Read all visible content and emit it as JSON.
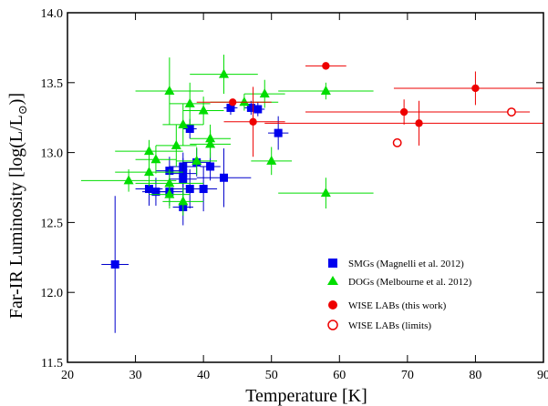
{
  "chart_data": {
    "type": "scatter",
    "xlabel": "Temperature [K]",
    "ylabel_main": "Far-IR Luminosity [log(L/L",
    "ylabel_sub": "⊙",
    "ylabel_end": ")]",
    "xlim": [
      20,
      90
    ],
    "ylim": [
      11.5,
      14.0
    ],
    "x_ticks": [
      20,
      30,
      40,
      50,
      60,
      70,
      80,
      90
    ],
    "y_ticks": [
      11.5,
      12.0,
      12.5,
      13.0,
      13.5,
      14.0
    ],
    "y_tick_labels": [
      "11.5",
      "12.0",
      "12.5",
      "13.0",
      "13.5",
      "14.0"
    ],
    "grid": false,
    "legend_position": "lower-right",
    "series": [
      {
        "name": "SMGs (Magnelli et al. 2012)",
        "color": "#0000ee",
        "marker": "square",
        "points": [
          {
            "x": 27.0,
            "y": 12.2,
            "xl": 25.0,
            "xh": 29.0,
            "yl": 11.71,
            "yh": 12.69
          },
          {
            "x": 32.0,
            "y": 12.74,
            "xl": 30.0,
            "xh": 34.0,
            "yl": 12.62,
            "yh": 12.86
          },
          {
            "x": 33.0,
            "y": 12.72,
            "xl": 31.0,
            "xh": 35.0,
            "yl": 12.62,
            "yh": 12.82
          },
          {
            "x": 35.0,
            "y": 12.87,
            "xl": 33.0,
            "xh": 37.0,
            "yl": 12.77,
            "yh": 12.97
          },
          {
            "x": 35.0,
            "y": 12.72,
            "xl": 33.0,
            "xh": 37.0,
            "yl": 12.62,
            "yh": 12.82
          },
          {
            "x": 37.0,
            "y": 12.9,
            "xl": 35.0,
            "xh": 39.0,
            "yl": 12.8,
            "yh": 13.0
          },
          {
            "x": 37.0,
            "y": 12.85,
            "xl": 35.0,
            "xh": 39.0,
            "yl": 12.74,
            "yh": 12.96
          },
          {
            "x": 37.0,
            "y": 12.81,
            "xl": 35.0,
            "xh": 39.0,
            "yl": 12.7,
            "yh": 12.92
          },
          {
            "x": 37.0,
            "y": 12.61,
            "xl": 35.5,
            "xh": 38.5,
            "yl": 12.48,
            "yh": 12.74
          },
          {
            "x": 38.0,
            "y": 13.17,
            "xl": 37.0,
            "xh": 39.0,
            "yl": 13.1,
            "yh": 13.24
          },
          {
            "x": 38.0,
            "y": 12.74,
            "xl": 35.0,
            "xh": 41.0,
            "yl": 12.6,
            "yh": 12.88
          },
          {
            "x": 39.0,
            "y": 12.93,
            "xl": 37.0,
            "xh": 41.0,
            "yl": 12.83,
            "yh": 13.03
          },
          {
            "x": 40.0,
            "y": 12.74,
            "xl": 38.0,
            "xh": 42.0,
            "yl": 12.58,
            "yh": 12.9
          },
          {
            "x": 41.0,
            "y": 12.9,
            "xl": 39.5,
            "xh": 42.5,
            "yl": 12.8,
            "yh": 13.0
          },
          {
            "x": 43.0,
            "y": 12.82,
            "xl": 39.0,
            "xh": 47.0,
            "yl": 12.61,
            "yh": 13.03
          },
          {
            "x": 44.0,
            "y": 13.32,
            "xl": 43.0,
            "xh": 45.0,
            "yl": 13.27,
            "yh": 13.37
          },
          {
            "x": 47.0,
            "y": 13.32,
            "xl": 46.0,
            "xh": 48.0,
            "yl": 13.27,
            "yh": 13.37
          },
          {
            "x": 48.0,
            "y": 13.31,
            "xl": 47.0,
            "xh": 49.0,
            "yl": 13.26,
            "yh": 13.36
          },
          {
            "x": 51.0,
            "y": 13.14,
            "xl": 49.5,
            "xh": 52.5,
            "yl": 13.02,
            "yh": 13.26
          }
        ]
      },
      {
        "name": "DOGs (Melbourne et al. 2012)",
        "color": "#00dd00",
        "marker": "triangle",
        "points": [
          {
            "x": 29.0,
            "y": 12.8,
            "xl": 22.0,
            "xh": 36.0,
            "yl": 12.72,
            "yh": 12.88
          },
          {
            "x": 32.0,
            "y": 13.01,
            "xl": 27.0,
            "xh": 37.0,
            "yl": 12.93,
            "yh": 13.09
          },
          {
            "x": 32.0,
            "y": 12.86,
            "xl": 27.0,
            "xh": 37.0,
            "yl": 12.76,
            "yh": 12.96
          },
          {
            "x": 33.0,
            "y": 12.95,
            "xl": 30.0,
            "xh": 36.0,
            "yl": 12.85,
            "yh": 13.05
          },
          {
            "x": 35.0,
            "y": 13.44,
            "xl": 30.0,
            "xh": 40.0,
            "yl": 13.2,
            "yh": 13.68
          },
          {
            "x": 35.0,
            "y": 12.78,
            "xl": 30.0,
            "xh": 40.0,
            "yl": 12.68,
            "yh": 12.88
          },
          {
            "x": 35.0,
            "y": 12.7,
            "xl": 32.0,
            "xh": 38.0,
            "yl": 12.6,
            "yh": 12.8
          },
          {
            "x": 36.0,
            "y": 13.05,
            "xl": 33.0,
            "xh": 39.0,
            "yl": 12.9,
            "yh": 13.2
          },
          {
            "x": 37.0,
            "y": 13.2,
            "xl": 34.0,
            "xh": 40.0,
            "yl": 13.05,
            "yh": 13.35
          },
          {
            "x": 37.0,
            "y": 12.65,
            "xl": 34.0,
            "xh": 40.0,
            "yl": 12.55,
            "yh": 12.75
          },
          {
            "x": 38.0,
            "y": 13.35,
            "xl": 35.0,
            "xh": 41.0,
            "yl": 13.2,
            "yh": 13.5
          },
          {
            "x": 39.0,
            "y": 12.94,
            "xl": 36.0,
            "xh": 42.0,
            "yl": 12.84,
            "yh": 13.04
          },
          {
            "x": 40.0,
            "y": 13.3,
            "xl": 37.0,
            "xh": 43.0,
            "yl": 13.2,
            "yh": 13.4
          },
          {
            "x": 41.0,
            "y": 13.1,
            "xl": 38.0,
            "xh": 44.0,
            "yl": 13.0,
            "yh": 13.2
          },
          {
            "x": 41.0,
            "y": 13.06,
            "xl": 38.0,
            "xh": 44.0,
            "yl": 12.96,
            "yh": 13.16
          },
          {
            "x": 43.0,
            "y": 13.56,
            "xl": 38.0,
            "xh": 48.0,
            "yl": 13.42,
            "yh": 13.7
          },
          {
            "x": 46.0,
            "y": 13.36,
            "xl": 41.0,
            "xh": 51.0,
            "yl": 13.3,
            "yh": 13.42
          },
          {
            "x": 49.0,
            "y": 13.42,
            "xl": 46.0,
            "xh": 52.0,
            "yl": 13.32,
            "yh": 13.52
          },
          {
            "x": 50.0,
            "y": 12.94,
            "xl": 47.0,
            "xh": 53.0,
            "yl": 12.84,
            "yh": 13.04
          },
          {
            "x": 58.0,
            "y": 13.44,
            "xl": 51.0,
            "xh": 65.0,
            "yl": 13.38,
            "yh": 13.5
          },
          {
            "x": 58.0,
            "y": 12.71,
            "xl": 51.0,
            "xh": 65.0,
            "yl": 12.6,
            "yh": 12.82
          }
        ]
      },
      {
        "name": "WISE LABs (this work)",
        "color": "#ee0000",
        "marker": "circle",
        "points": [
          {
            "x": 44.3,
            "y": 13.36,
            "xl": 39.0,
            "xh": 50.0,
            "yl": 13.34,
            "yh": 13.38
          },
          {
            "x": 47.3,
            "y": 13.22,
            "xl": 43.0,
            "xh": 52.0,
            "yl": 12.97,
            "yh": 13.47
          },
          {
            "x": 58.0,
            "y": 13.62,
            "xl": 55.0,
            "xh": 61.0,
            "yl": 13.6,
            "yh": 13.64
          },
          {
            "x": 69.5,
            "y": 13.29,
            "xl": 55.0,
            "xh": 88.0,
            "yl": 13.2,
            "yh": 13.38
          },
          {
            "x": 71.7,
            "y": 13.21,
            "xl": 49.0,
            "xh": 90.0,
            "yl": 13.05,
            "yh": 13.37
          },
          {
            "x": 80.0,
            "y": 13.46,
            "xl": 68.0,
            "xh": 90.0,
            "yl": 13.34,
            "yh": 13.58
          }
        ]
      },
      {
        "name": "WISE LABs (limits)",
        "color": "#ee0000",
        "marker": "open-circle",
        "points": [
          {
            "x": 68.5,
            "y": 13.07
          },
          {
            "x": 85.3,
            "y": 13.29
          }
        ]
      }
    ]
  }
}
